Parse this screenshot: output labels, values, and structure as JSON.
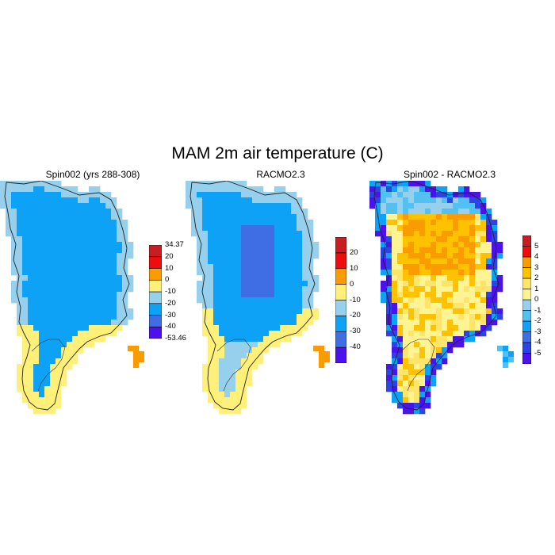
{
  "title": "MAM 2m air temperature (C)",
  "panels": [
    {
      "title": "Spin002 (yrs 288-308)",
      "colors": [
        "#4c12ee",
        "#3f6ee4",
        "#0da2f5",
        "#97d0ec",
        "#fff07a",
        "#fa9c00",
        "#ee0d0d",
        "#c81e22"
      ],
      "labels": [
        "-53.46",
        "-40",
        "-30",
        "-20",
        "-10",
        "0",
        "10",
        "20",
        "34.37"
      ],
      "label_mode": "boundaries"
    },
    {
      "title": "RACMO2.3",
      "colors": [
        "#4c12ee",
        "#3f6ee4",
        "#0da2f5",
        "#97d0ec",
        "#fff07a",
        "#fa9c00",
        "#ee0d0d",
        "#c81e22"
      ],
      "labels": [
        "-40",
        "-30",
        "-20",
        "-10",
        "0",
        "10",
        "20"
      ],
      "label_mode": "interior"
    },
    {
      "title": "Spin002 - RACMO2.3",
      "colors": [
        "#4c12ee",
        "#2c44e6",
        "#3f6ee4",
        "#0da2f5",
        "#53c0f2",
        "#97d0ec",
        "#fff494",
        "#fde46a",
        "#fec200",
        "#fa9c00",
        "#ee0d0d",
        "#c81e22"
      ],
      "labels": [
        "-5",
        "-4",
        "-3",
        "-2",
        "-1",
        "0",
        "1",
        "2",
        "3",
        "4",
        "5"
      ],
      "label_mode": "interior"
    }
  ]
}
